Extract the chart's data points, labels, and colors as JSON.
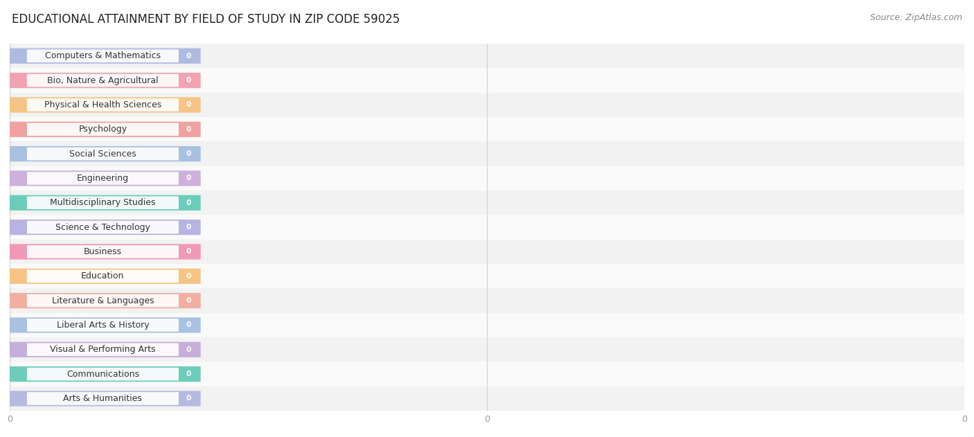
{
  "title": "EDUCATIONAL ATTAINMENT BY FIELD OF STUDY IN ZIP CODE 59025",
  "source": "Source: ZipAtlas.com",
  "categories": [
    "Computers & Mathematics",
    "Bio, Nature & Agricultural",
    "Physical & Health Sciences",
    "Psychology",
    "Social Sciences",
    "Engineering",
    "Multidisciplinary Studies",
    "Science & Technology",
    "Business",
    "Education",
    "Literature & Languages",
    "Liberal Arts & History",
    "Visual & Performing Arts",
    "Communications",
    "Arts & Humanities"
  ],
  "values": [
    0,
    0,
    0,
    0,
    0,
    0,
    0,
    0,
    0,
    0,
    0,
    0,
    0,
    0,
    0
  ],
  "bar_colors": [
    "#a8b4e0",
    "#f09aaa",
    "#f5c07a",
    "#f09898",
    "#a0bce0",
    "#c8a8d8",
    "#5ec8b4",
    "#b0ace0",
    "#f090b0",
    "#f5c07a",
    "#f0a898",
    "#a0bce0",
    "#c0a8d8",
    "#5ec8b4",
    "#b0b4e0"
  ],
  "background_row_odd": "#f2f2f2",
  "background_row_even": "#fafafa",
  "grid_color": "#d0d0d0",
  "title_fontsize": 12,
  "source_fontsize": 9,
  "label_fontsize": 9,
  "tick_fontsize": 9,
  "tick_color": "#999999",
  "background_color": "#ffffff",
  "n_gridlines": 3,
  "xtick_positions": [
    0.0,
    0.5,
    1.0
  ],
  "xtick_labels": [
    "0",
    "0",
    "0"
  ]
}
